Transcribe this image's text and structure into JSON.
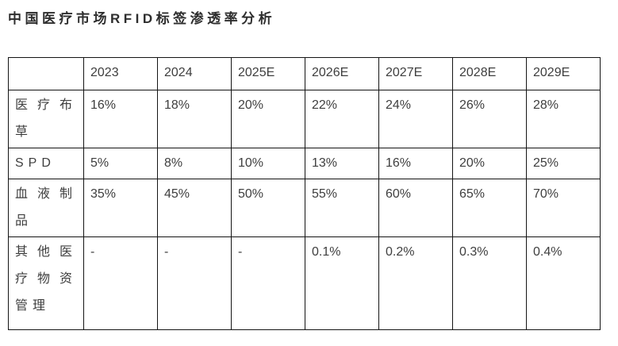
{
  "title": "中国医疗市场RFID标签渗透率分析",
  "colors": {
    "text": "#3e3e3e",
    "border": "#141414",
    "background": "#ffffff"
  },
  "table": {
    "columns": [
      "",
      "2023",
      "2024",
      "2025E",
      "2026E",
      "2027E",
      "2028E",
      "2029E"
    ],
    "rows": [
      {
        "label": "医疗布草",
        "values": [
          "16%",
          "18%",
          "20%",
          "22%",
          "24%",
          "26%",
          "28%"
        ]
      },
      {
        "label": "SPD",
        "values": [
          "5%",
          "8%",
          "10%",
          "13%",
          "16%",
          "20%",
          "25%"
        ]
      },
      {
        "label": "血液制品",
        "values": [
          "35%",
          "45%",
          "50%",
          "55%",
          "60%",
          "65%",
          "70%"
        ]
      },
      {
        "label": "其他医疗物资管理",
        "values": [
          "-",
          "-",
          "-",
          "0.1%",
          "0.2%",
          "0.3%",
          "0.4%"
        ]
      }
    ]
  }
}
